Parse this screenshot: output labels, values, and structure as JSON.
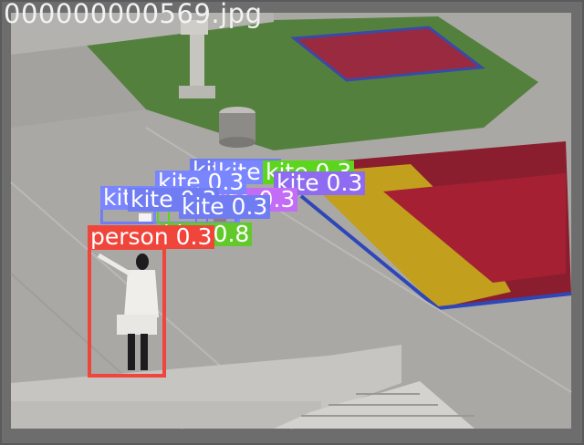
{
  "header": {
    "filename": "000000000569.jpg"
  },
  "detections": [
    {
      "class_label": "kite 0.3",
      "color": "#6f7cf2"
    },
    {
      "class_label": "kite 0.3",
      "color": "#7a86ff"
    },
    {
      "class_label": "kite 0.3",
      "color": "#5bd61c"
    },
    {
      "class_label": "kite 0.3",
      "color": "#8e6bf0"
    },
    {
      "class_label": "kite 0.3",
      "color": "#c36cf5"
    },
    {
      "class_label": "kite 0.3",
      "color": "#7a86ff"
    },
    {
      "class_label": "kite 0.3",
      "color": "#7a86ff"
    },
    {
      "class_label": "kite 0.3",
      "color": "#6f7cf2"
    },
    {
      "class_label": "kite 0.3",
      "color": "#6f7cf2"
    },
    {
      "class_label": "kite 0.8",
      "color": "#62c92a"
    },
    {
      "class_label": "person 0.3",
      "color": "#f0453a"
    }
  ]
}
